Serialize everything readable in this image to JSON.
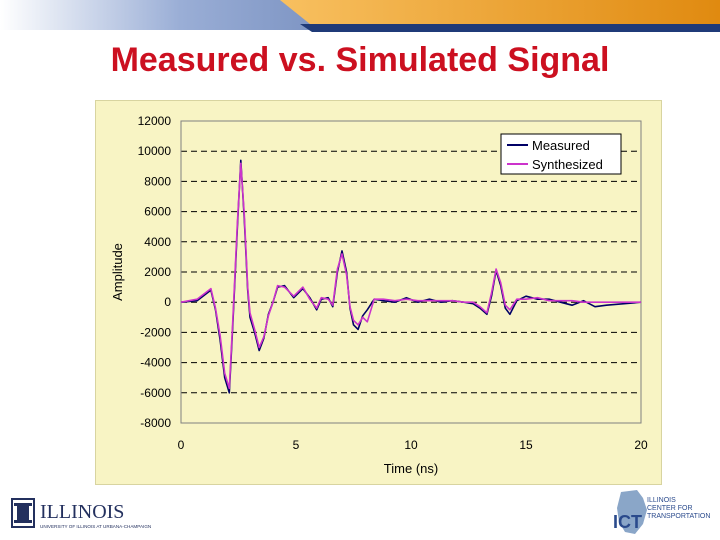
{
  "slide": {
    "title": "Measured vs. Simulated Signal"
  },
  "colors": {
    "title": "#cc1020",
    "banner": "#2a4a8c",
    "banner_accent": "#f0a020",
    "plot_background": "#f8f4c4",
    "measured": "#000066",
    "synthesized": "#cc33cc"
  },
  "logos": {
    "left": {
      "word": "ILLINOIS",
      "subtitle": "UNIVERSITY OF ILLINOIS AT URBANA-CHAMPAIGN"
    },
    "right": {
      "lines": [
        "ILLINOIS",
        "CENTER FOR",
        "TRANSPORTATION"
      ]
    }
  },
  "chart_data": {
    "type": "line",
    "title": "",
    "xlabel": "Time (ns)",
    "ylabel": "Amplitude",
    "xlim": [
      0,
      20
    ],
    "ylim": [
      -8000,
      12000
    ],
    "xticks": [
      0,
      5,
      10,
      15,
      20
    ],
    "yticks": [
      -8000,
      -6000,
      -4000,
      -2000,
      0,
      2000,
      4000,
      6000,
      8000,
      10000,
      12000
    ],
    "grid": "horizontal dashed",
    "legend": "top-right",
    "series": [
      {
        "name": "Measured",
        "color": "#000066",
        "x": [
          0,
          0.7,
          1.3,
          1.5,
          1.7,
          1.9,
          2.1,
          2.25,
          2.45,
          2.6,
          2.75,
          2.9,
          3.0,
          3.2,
          3.4,
          3.6,
          3.8,
          4.0,
          4.2,
          4.5,
          4.9,
          5.3,
          5.6,
          5.9,
          6.1,
          6.4,
          6.6,
          6.8,
          7.0,
          7.2,
          7.35,
          7.5,
          7.7,
          7.9,
          8.1,
          8.4,
          8.8,
          9.3,
          9.8,
          10.3,
          10.8,
          11.3,
          11.8,
          12.3,
          12.7,
          13.0,
          13.3,
          13.5,
          13.7,
          13.9,
          14.1,
          14.3,
          14.6,
          15.0,
          15.5,
          16.0,
          16.5,
          17.0,
          17.5,
          18.0,
          18.5,
          20.0
        ],
        "y": [
          0,
          100,
          800,
          -500,
          -2500,
          -5000,
          -6000,
          -1500,
          5000,
          9400,
          5500,
          800,
          -1000,
          -2000,
          -3200,
          -2400,
          -800,
          0,
          1000,
          1100,
          300,
          900,
          300,
          -500,
          200,
          300,
          -300,
          2000,
          3400,
          2000,
          -400,
          -1500,
          -1800,
          -900,
          -500,
          200,
          100,
          0,
          300,
          0,
          200,
          0,
          100,
          0,
          -100,
          -400,
          -800,
          400,
          2100,
          1100,
          -400,
          -800,
          100,
          400,
          200,
          200,
          0,
          -200,
          100,
          -300,
          -200,
          0
        ]
      },
      {
        "name": "Synthesized",
        "color": "#cc33cc",
        "x": [
          0,
          0.7,
          1.3,
          1.5,
          1.7,
          1.9,
          2.1,
          2.25,
          2.45,
          2.6,
          2.75,
          2.9,
          3.0,
          3.2,
          3.4,
          3.6,
          3.8,
          4.0,
          4.2,
          4.5,
          4.9,
          5.3,
          5.6,
          5.9,
          6.1,
          6.4,
          6.6,
          6.8,
          7.0,
          7.2,
          7.35,
          7.5,
          7.7,
          7.9,
          8.1,
          8.4,
          8.8,
          9.3,
          9.8,
          10.3,
          10.8,
          11.3,
          11.8,
          12.3,
          12.7,
          13.0,
          13.3,
          13.5,
          13.7,
          13.9,
          14.1,
          14.3,
          14.6,
          15.0,
          15.5,
          16.0,
          16.5,
          17.0,
          17.5,
          18.0,
          18.5,
          20.0
        ],
        "y": [
          0,
          200,
          900,
          -400,
          -2200,
          -4700,
          -5700,
          -1200,
          5300,
          9200,
          5800,
          1000,
          -700,
          -1800,
          -3000,
          -2300,
          -900,
          0,
          1100,
          1000,
          400,
          1000,
          200,
          -400,
          300,
          200,
          -200,
          2200,
          3200,
          1800,
          -300,
          -1200,
          -1500,
          -1000,
          -1300,
          200,
          200,
          100,
          200,
          100,
          100,
          100,
          100,
          0,
          0,
          -300,
          -700,
          600,
          2200,
          1300,
          -200,
          -500,
          200,
          200,
          300,
          100,
          100,
          100,
          0,
          0,
          0,
          0
        ]
      }
    ]
  }
}
